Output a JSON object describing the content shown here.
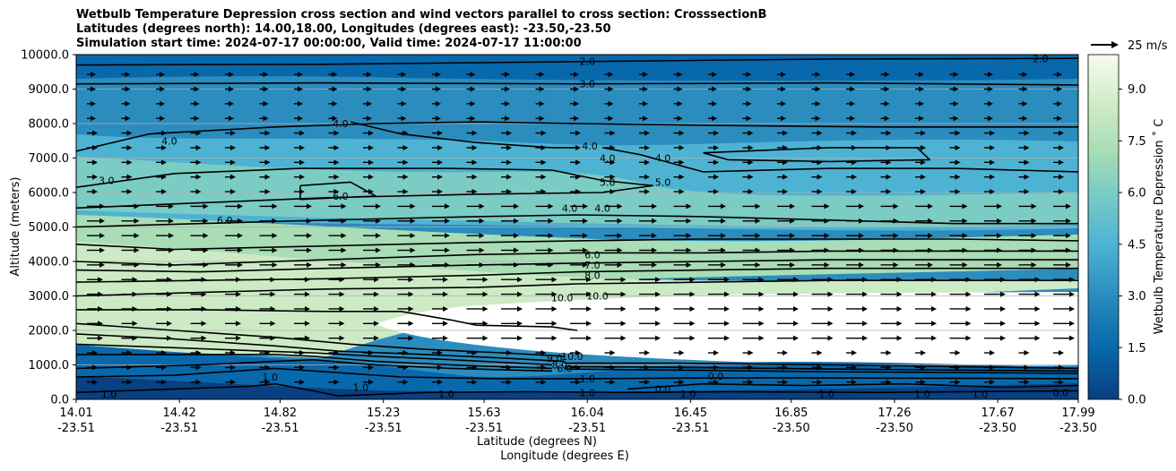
{
  "title": {
    "line1": "Wetbulb Temperature Depression cross section and wind vectors parallel to cross section: CrosssectionB",
    "line2": "Latitudes (degrees north): 14.00,18.00, Longitudes (degrees east): -23.50,-23.50",
    "line3": "Simulation start time: 2024-07-17 00:00:00, Valid time: 2024-07-17 11:00:00"
  },
  "chart_data": {
    "type": "contour cross section with wind vectors",
    "ylabel": "Altitude (meters)",
    "xlabel_line1": "Latitude (degrees N)",
    "xlabel_line2": "Longitude (degrees E)",
    "ylim": [
      0,
      10000
    ],
    "y_ticks": [
      "0.0",
      "1000.0",
      "2000.0",
      "3000.0",
      "4000.0",
      "5000.0",
      "6000.0",
      "7000.0",
      "8000.0",
      "9000.0",
      "10000.0"
    ],
    "x_ticks": [
      {
        "lat": "14.01",
        "lon": "-23.51"
      },
      {
        "lat": "14.42",
        "lon": "-23.51"
      },
      {
        "lat": "14.82",
        "lon": "-23.51"
      },
      {
        "lat": "15.23",
        "lon": "-23.51"
      },
      {
        "lat": "15.63",
        "lon": "-23.51"
      },
      {
        "lat": "16.04",
        "lon": "-23.51"
      },
      {
        "lat": "16.45",
        "lon": "-23.51"
      },
      {
        "lat": "16.85",
        "lon": "-23.50"
      },
      {
        "lat": "17.26",
        "lon": "-23.50"
      },
      {
        "lat": "17.67",
        "lon": "-23.50"
      },
      {
        "lat": "17.99",
        "lon": "-23.50"
      }
    ],
    "colorbar_label": "Wetbulb Temperature Depression ˚ C",
    "colorbar_ticks": [
      "0.0",
      "1.5",
      "3.0",
      "4.5",
      "6.0",
      "7.5",
      "9.0"
    ],
    "colorbar_range": [
      0,
      10
    ],
    "vector_key": "25 m/s",
    "contour_levels": [
      0,
      1,
      2,
      3,
      4,
      5,
      6,
      7,
      8,
      9,
      10
    ],
    "contour_labels": [
      {
        "text": "2.0",
        "lat": 16.04,
        "alt": 9800
      },
      {
        "text": "2.0",
        "lat": 17.84,
        "alt": 9880
      },
      {
        "text": "3.0",
        "lat": 16.04,
        "alt": 9150
      },
      {
        "text": "3.0",
        "lat": 14.13,
        "alt": 6350
      },
      {
        "text": "4.0",
        "lat": 14.38,
        "alt": 7500
      },
      {
        "text": "4.0",
        "lat": 15.06,
        "alt": 8000
      },
      {
        "text": "4.0",
        "lat": 16.05,
        "alt": 7350
      },
      {
        "text": "4.0",
        "lat": 16.12,
        "alt": 7000
      },
      {
        "text": "4.0",
        "lat": 16.34,
        "alt": 7000
      },
      {
        "text": "4.0",
        "lat": 15.97,
        "alt": 5550
      },
      {
        "text": "4.0",
        "lat": 16.1,
        "alt": 5550
      },
      {
        "text": "5.0",
        "lat": 16.12,
        "alt": 6300
      },
      {
        "text": "5.0",
        "lat": 16.34,
        "alt": 6300
      },
      {
        "text": "6.0",
        "lat": 15.06,
        "alt": 5900
      },
      {
        "text": "6.0",
        "lat": 14.6,
        "alt": 5200
      },
      {
        "text": "6.0",
        "lat": 16.06,
        "alt": 4200
      },
      {
        "text": "7.0",
        "lat": 16.06,
        "alt": 3900
      },
      {
        "text": "8.0",
        "lat": 16.06,
        "alt": 3600
      },
      {
        "text": "10.0",
        "lat": 15.94,
        "alt": 2950
      },
      {
        "text": "10.0",
        "lat": 16.08,
        "alt": 3000
      },
      {
        "text": "10.0",
        "lat": 15.98,
        "alt": 1250
      },
      {
        "text": "9.0",
        "lat": 15.91,
        "alt": 1200
      },
      {
        "text": "8.0",
        "lat": 15.93,
        "alt": 1000
      },
      {
        "text": "6.0",
        "lat": 15.95,
        "alt": 900
      },
      {
        "text": "1.0",
        "lat": 16.04,
        "alt": 600
      },
      {
        "text": "1.0",
        "lat": 16.04,
        "alt": 200
      },
      {
        "text": "0.0",
        "lat": 16.34,
        "alt": 300
      },
      {
        "text": "0.0",
        "lat": 16.55,
        "alt": 680
      },
      {
        "text": "1.0",
        "lat": 14.14,
        "alt": 150
      },
      {
        "text": "1.0",
        "lat": 14.78,
        "alt": 650
      },
      {
        "text": "1.0",
        "lat": 15.14,
        "alt": 350
      },
      {
        "text": "1.0",
        "lat": 15.48,
        "alt": 150
      },
      {
        "text": "1.0",
        "lat": 16.44,
        "alt": 150
      },
      {
        "text": "1.0",
        "lat": 16.99,
        "alt": 150
      },
      {
        "text": "1.0",
        "lat": 17.37,
        "alt": 150
      },
      {
        "text": "1.0",
        "lat": 17.6,
        "alt": 150
      },
      {
        "text": "0.0",
        "lat": 17.92,
        "alt": 200
      }
    ]
  }
}
